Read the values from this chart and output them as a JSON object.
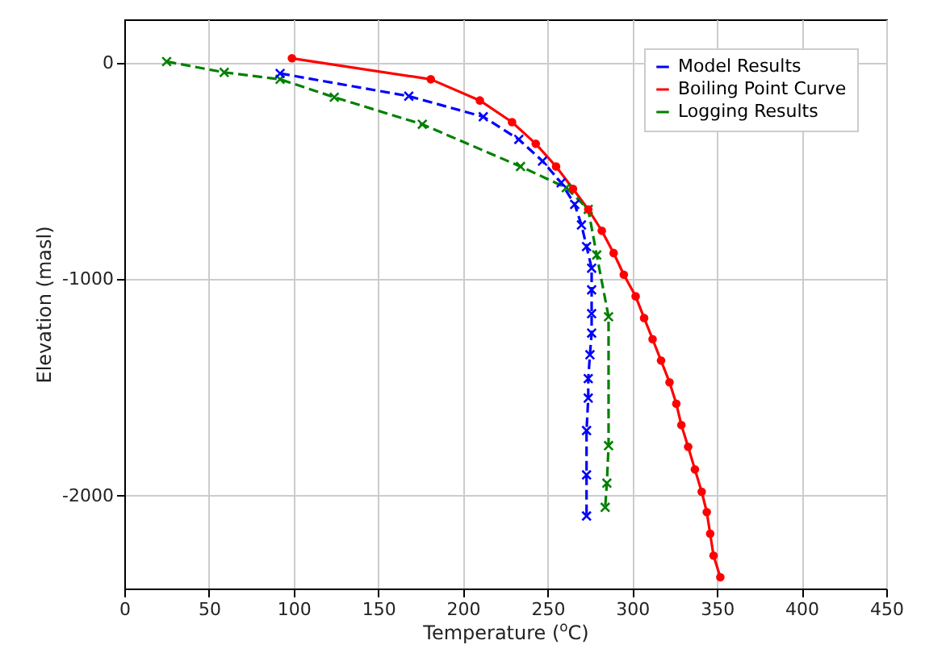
{
  "chart_data": {
    "type": "line",
    "xlabel": "Temperature ($^{o}$C)",
    "ylabel": "Elevation (masl)",
    "xlim": [
      0,
      450
    ],
    "xticks": [
      0,
      50,
      100,
      150,
      200,
      250,
      300,
      350,
      400,
      450
    ],
    "ylim": [
      -2430,
      200
    ],
    "yticks": [
      0,
      -1000,
      -2000
    ],
    "grid": true,
    "legend": "top right",
    "series": [
      {
        "name": "Model Results",
        "color": "#0000ff",
        "line_style": "dashed",
        "marker": "cross",
        "x": [
          92,
          168,
          212,
          233,
          247,
          258,
          266,
          270,
          273,
          276,
          276,
          276,
          276,
          275,
          274,
          274,
          273,
          273,
          273
        ],
        "values": [
          -50,
          -155,
          -250,
          -355,
          -455,
          -555,
          -655,
          -750,
          -850,
          -950,
          -1050,
          -1160,
          -1250,
          -1350,
          -1460,
          -1550,
          -1700,
          -1905,
          -2095
        ]
      },
      {
        "name": "Boiling Point Curve",
        "color": "#ff0000",
        "line_style": "solid",
        "marker": "circle",
        "x": [
          99,
          181,
          210,
          229,
          243,
          255,
          265,
          274,
          282,
          289,
          295,
          302,
          307,
          312,
          317,
          322,
          326,
          329,
          333,
          337,
          341,
          344,
          346,
          348,
          352
        ],
        "values": [
          20,
          -77,
          -175,
          -275,
          -375,
          -480,
          -583,
          -678,
          -777,
          -880,
          -980,
          -1080,
          -1180,
          -1278,
          -1377,
          -1477,
          -1576,
          -1675,
          -1775,
          -1880,
          -1983,
          -2077,
          -2177,
          -2278,
          -2378
        ]
      },
      {
        "name": "Logging Results",
        "color": "#008000",
        "line_style": "dashed",
        "marker": "cross",
        "x": [
          25,
          59,
          92,
          124,
          176,
          234,
          261,
          274,
          279,
          286,
          286,
          285,
          284
        ],
        "values": [
          5,
          -45,
          -77,
          -160,
          -285,
          -480,
          -578,
          -678,
          -889,
          -1174,
          -1770,
          -1943,
          -2055
        ]
      }
    ]
  }
}
